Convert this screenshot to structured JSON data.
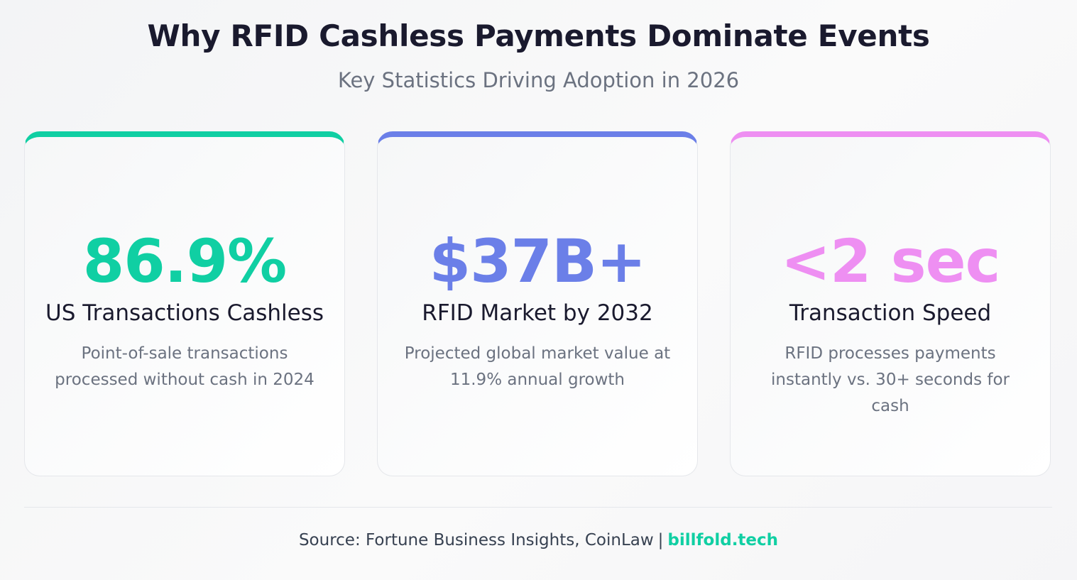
{
  "header": {
    "title": "Why RFID Cashless Payments Dominate Events",
    "subtitle": "Key Statistics Driving Adoption in 2026"
  },
  "cards": [
    {
      "value": "86.9%",
      "label": "US Transactions Cashless",
      "description": "Point-of-sale transactions processed without cash in 2024",
      "accent_color": "#10cfa3"
    },
    {
      "value": "$37B+",
      "label": "RFID Market by 2032",
      "description": "Projected global market value at 11.9% annual growth",
      "accent_color": "#6b7fe8"
    },
    {
      "value": "<2 sec",
      "label": "Transaction Speed",
      "description": "RFID processes payments instantly vs. 30+ seconds for cash",
      "accent_color": "#ee8ff2"
    }
  ],
  "footer": {
    "source": "Source: Fortune Business Insights, CoinLaw",
    "separator": "|",
    "brand": "billfold.tech",
    "brand_color": "#10cfa3"
  }
}
